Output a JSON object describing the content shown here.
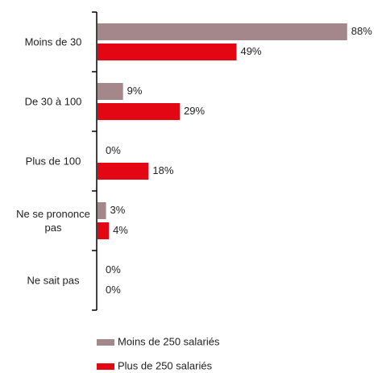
{
  "chart_data": {
    "type": "bar",
    "orientation": "horizontal",
    "categories": [
      "Moins de 30",
      "De 30 à 100",
      "Plus de 100",
      "Ne se prononce pas",
      "Ne sait pas"
    ],
    "series": [
      {
        "name": "Moins de 250 salariés",
        "color": "#a4878b",
        "values": [
          88,
          9,
          0,
          3,
          0
        ],
        "value_labels": [
          "88%",
          "9%",
          "0%",
          "3%",
          "0%"
        ]
      },
      {
        "name": "Plus de 250 salariés",
        "color": "#e30613",
        "values": [
          49,
          29,
          18,
          4,
          0
        ],
        "value_labels": [
          "49%",
          "29%",
          "18%",
          "4%",
          "0%"
        ]
      }
    ],
    "legend": "bottom"
  }
}
